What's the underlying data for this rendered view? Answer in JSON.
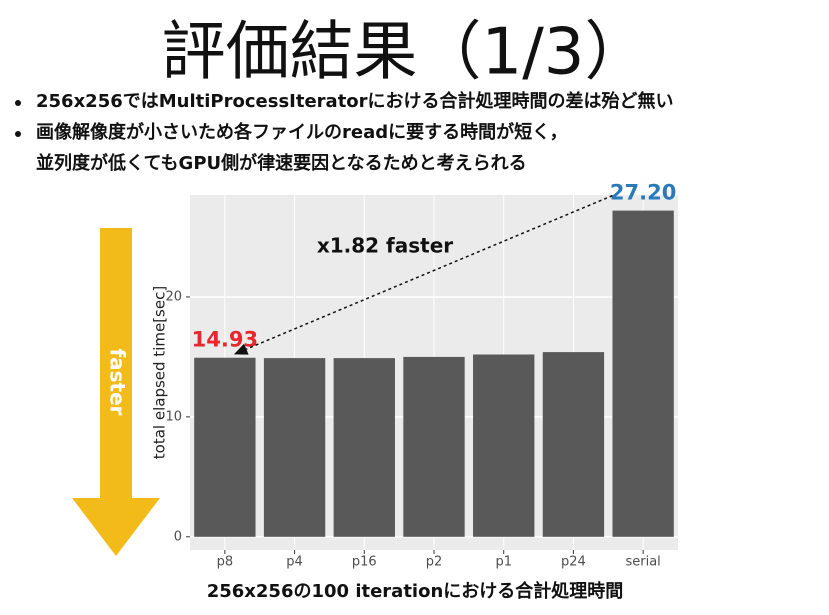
{
  "slide": {
    "title": "評価結果（1/3）",
    "bullets": [
      {
        "lines": [
          "256x256ではMultiProcessIteratorにおける合計処理時間の差は殆ど無い"
        ]
      },
      {
        "lines": [
          "画像解像度が小さいため各ファイルのreadに要する時間が短く，",
          "並列度が低くてもGPU側が律速要因となるためと考えられる"
        ]
      }
    ],
    "arrow_label": "faster",
    "caption": "256x256の100 iterationにおける合計処理時間"
  },
  "chart_data": {
    "type": "bar",
    "y_label": "total elapsed time[sec]",
    "annotation": "x1.82 faster",
    "categories": [
      "p8",
      "p4",
      "p16",
      "p2",
      "p1",
      "p24",
      "serial"
    ],
    "values": [
      14.93,
      14.9,
      14.9,
      15.0,
      15.2,
      15.4,
      27.2
    ],
    "value_labels": [
      "14.93",
      null,
      null,
      null,
      null,
      null,
      "27.20"
    ],
    "value_label_colors": [
      "#e8262c",
      null,
      null,
      null,
      null,
      null,
      "#2a7ab9"
    ],
    "color": "#595959",
    "ylim": [
      -1.1,
      28.5
    ],
    "yticks": [
      0,
      10,
      20
    ],
    "grid": true
  }
}
